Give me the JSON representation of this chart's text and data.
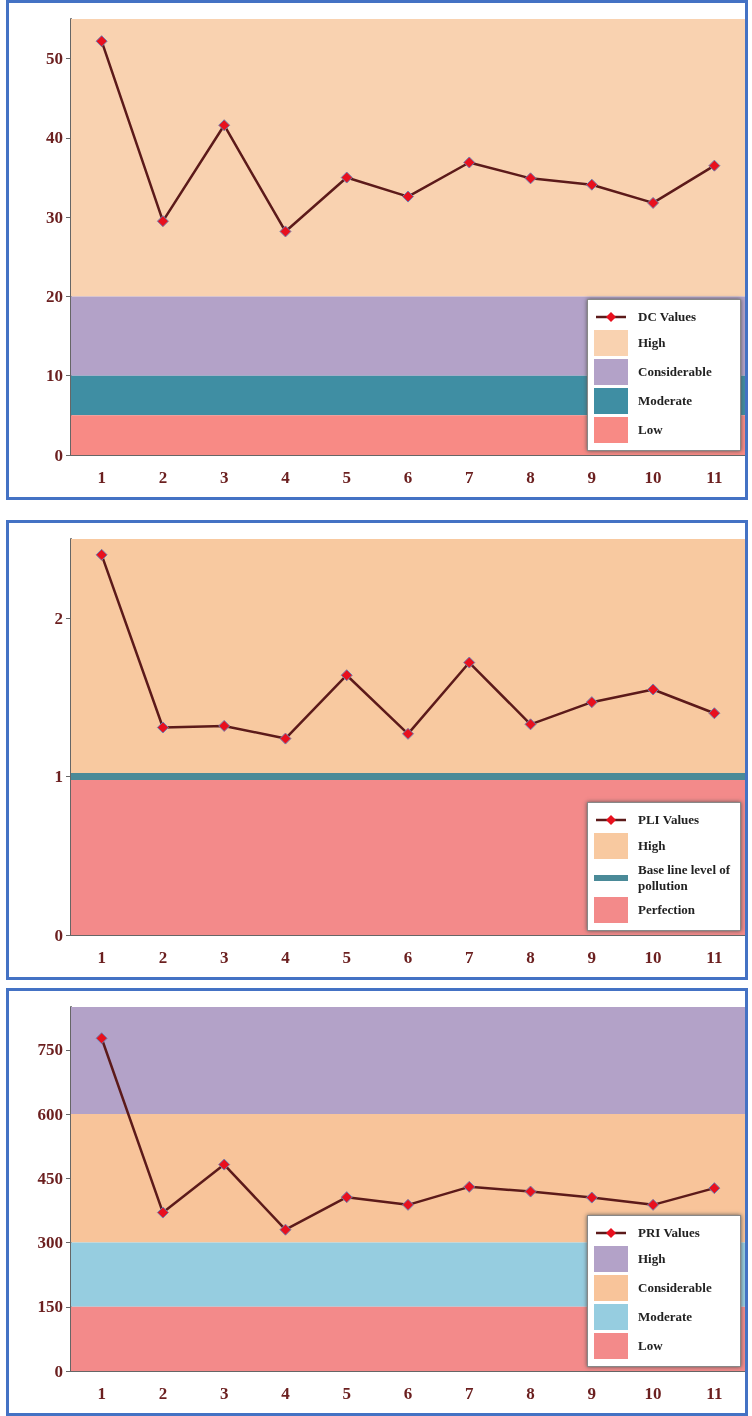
{
  "chart_data": [
    {
      "type": "line",
      "categories": [
        "1",
        "2",
        "3",
        "4",
        "5",
        "6",
        "7",
        "8",
        "9",
        "10",
        "11"
      ],
      "series": [
        {
          "name": "DC Values",
          "color": "#5c1a1a",
          "values": [
            52.2,
            29.5,
            41.6,
            28.2,
            35.0,
            32.6,
            36.9,
            34.9,
            34.1,
            31.8,
            36.5
          ]
        }
      ],
      "ylim": [
        0,
        55
      ],
      "yticks": [
        0,
        10,
        20,
        30,
        40,
        50
      ],
      "grid": false,
      "legend": "bottom right",
      "marker": "diamond",
      "line_style": "solid",
      "bands": [
        {
          "axis": "y",
          "from": 20,
          "to": 55,
          "label": "High",
          "color": "#f9d2b0"
        },
        {
          "axis": "y",
          "from": 10,
          "to": 20,
          "label": "Considerable",
          "color": "#b3a2c8"
        },
        {
          "axis": "y",
          "from": 5,
          "to": 10,
          "label": "Moderate",
          "color": "#3f8ea3"
        },
        {
          "axis": "y",
          "from": 0,
          "to": 5,
          "label": "Low",
          "color": "#f88a85"
        }
      ]
    },
    {
      "type": "line",
      "categories": [
        "1",
        "2",
        "3",
        "4",
        "5",
        "6",
        "7",
        "8",
        "9",
        "10",
        "11"
      ],
      "series": [
        {
          "name": "PLI Values",
          "color": "#5c1a1a",
          "values": [
            2.4,
            1.31,
            1.32,
            1.24,
            1.64,
            1.27,
            1.72,
            1.33,
            1.47,
            1.55,
            1.4
          ]
        }
      ],
      "ylim": [
        0,
        2.5
      ],
      "yticks": [
        0,
        1,
        2
      ],
      "grid": false,
      "legend": "bottom right",
      "marker": "diamond",
      "line_style": "solid",
      "bands": [
        {
          "axis": "y",
          "from": 1,
          "to": 2.5,
          "label": "High",
          "color": "#f8c9a0"
        },
        {
          "axis": "y",
          "from": 0,
          "to": 1,
          "label": "Perfection",
          "color": "#f38a8a"
        }
      ],
      "ref_lines": [
        {
          "axis": "y",
          "value": 1,
          "label": "Base line level of pollution",
          "color": "#4a8a98"
        }
      ]
    },
    {
      "type": "line",
      "categories": [
        "1",
        "2",
        "3",
        "4",
        "5",
        "6",
        "7",
        "8",
        "9",
        "10",
        "11"
      ],
      "series": [
        {
          "name": "PRI Values",
          "color": "#5c1a1a",
          "values": [
            777,
            370,
            482,
            330,
            406,
            388,
            430,
            419,
            405,
            388,
            427
          ]
        }
      ],
      "ylim": [
        0,
        850
      ],
      "yticks": [
        0,
        150,
        300,
        450,
        600,
        750
      ],
      "grid": false,
      "legend": "bottom right",
      "marker": "diamond",
      "line_style": "solid",
      "bands": [
        {
          "axis": "y",
          "from": 600,
          "to": 850,
          "label": "High",
          "color": "#b3a2c8"
        },
        {
          "axis": "y",
          "from": 300,
          "to": 600,
          "label": "Considerable",
          "color": "#f8c49a"
        },
        {
          "axis": "y",
          "from": 150,
          "to": 300,
          "label": "Moderate",
          "color": "#96cde0"
        },
        {
          "axis": "y",
          "from": 0,
          "to": 150,
          "label": "Low",
          "color": "#f38a8a"
        }
      ]
    }
  ]
}
